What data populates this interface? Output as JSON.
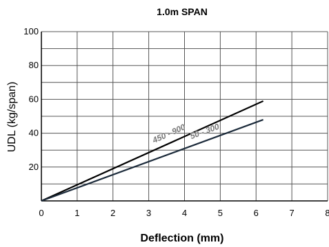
{
  "chart_data": {
    "type": "line",
    "title": "1.0m SPAN",
    "xlabel": "Deflection (mm)",
    "ylabel": "UDL (kg/span)",
    "xlim": [
      0,
      8
    ],
    "ylim": [
      0,
      100
    ],
    "xticks": [
      "0",
      "1",
      "2",
      "3",
      "4",
      "5",
      "6",
      "7",
      "8"
    ],
    "yticks": [
      "20",
      "40",
      "60",
      "80",
      "100"
    ],
    "grid": true,
    "series": [
      {
        "name": "450 - 900",
        "x": [
          0,
          6.2
        ],
        "y": [
          0,
          59
        ],
        "color": "#000000"
      },
      {
        "name": "50 - 300",
        "x": [
          0,
          6.2
        ],
        "y": [
          0,
          48
        ],
        "color": "#1b2a3a"
      }
    ]
  }
}
